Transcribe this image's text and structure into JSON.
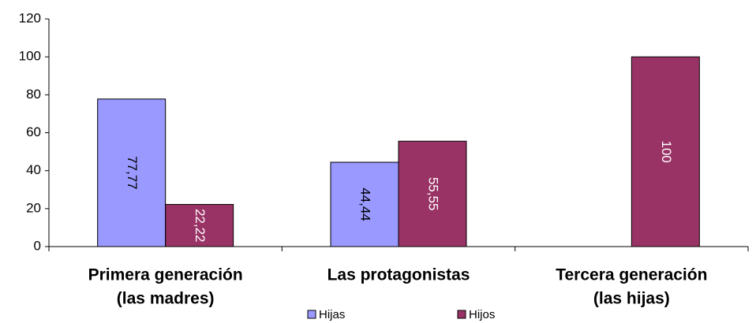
{
  "chart_data": {
    "type": "bar",
    "categories": [
      [
        "Primera generación",
        "(las madres)"
      ],
      [
        "Las protagonistas"
      ],
      [
        "Tercera generación",
        "(las hijas)"
      ]
    ],
    "series": [
      {
        "name": "Hijas",
        "color": "#9999ff",
        "label_color": "#000000",
        "values": [
          77.77,
          44.44,
          null
        ],
        "value_labels": [
          "77,77",
          "44,44",
          null
        ]
      },
      {
        "name": "Hijos",
        "color": "#993366",
        "label_color": "#ffffff",
        "values": [
          22.22,
          55.55,
          100
        ],
        "value_labels": [
          "22,22",
          "55,55",
          "100"
        ]
      }
    ],
    "ylim": [
      0,
      120
    ],
    "yticks": [
      0,
      20,
      40,
      60,
      80,
      100,
      120
    ],
    "grid": false,
    "legend": "bottom"
  }
}
